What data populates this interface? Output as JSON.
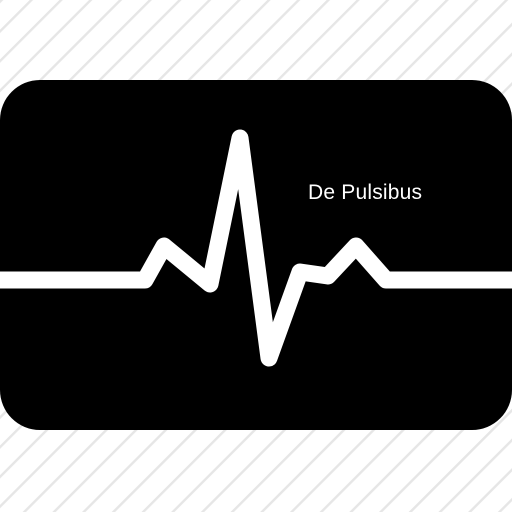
{
  "icon": {
    "name": "heart-rate-monitor-icon",
    "caption": "De Pulsibus"
  },
  "colors": {
    "background": "#ffffff",
    "stripe": "#e6e6e6",
    "panel": "#000000",
    "trace": "#ffffff",
    "caption": "#ffffff"
  }
}
